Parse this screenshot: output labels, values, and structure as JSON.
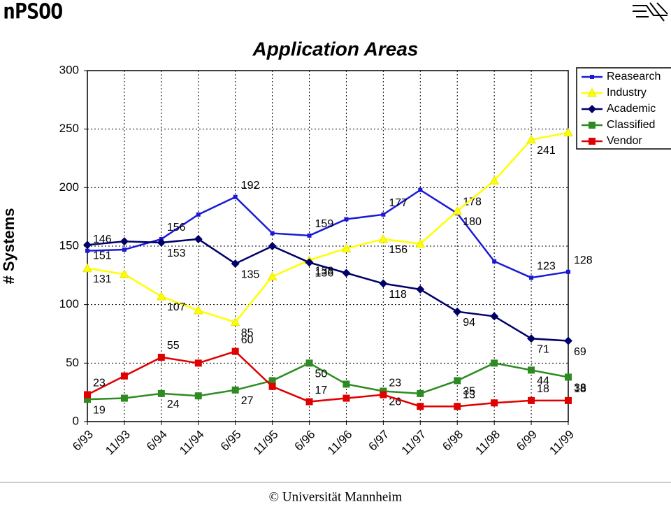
{
  "header": {
    "logo": "nPSOO"
  },
  "chart_data": {
    "type": "line",
    "title": "Application Areas",
    "y_label": "# Systems",
    "categories": [
      "6/93",
      "11/93",
      "6/94",
      "11/94",
      "6/95",
      "11/95",
      "6/96",
      "11/96",
      "6/97",
      "11/97",
      "6/98",
      "11/98",
      "6/99",
      "11/99"
    ],
    "ylim": [
      0,
      300
    ],
    "yticks": [
      0,
      50,
      100,
      150,
      200,
      250,
      300
    ],
    "grid": true,
    "legend": "upper right",
    "series": [
      {
        "name": "Reasearch",
        "color": "#1a1ad6",
        "marker": "square",
        "values": [
          146,
          147,
          156,
          177,
          192,
          161,
          159,
          173,
          177,
          198,
          178,
          137,
          123,
          128
        ],
        "value_labels": [
          146,
          null,
          156,
          null,
          192,
          null,
          159,
          null,
          177,
          null,
          178,
          null,
          123,
          128
        ]
      },
      {
        "name": "Industry",
        "color": "#ffff00",
        "marker": "triangle",
        "values": [
          131,
          126,
          107,
          95,
          85,
          124,
          138,
          148,
          156,
          152,
          180,
          206,
          241,
          247
        ],
        "value_labels": [
          131,
          null,
          107,
          null,
          85,
          null,
          138,
          null,
          156,
          null,
          180,
          null,
          241,
          null
        ]
      },
      {
        "name": "Academic",
        "color": "#000066",
        "marker": "diamond",
        "values": [
          151,
          154,
          153,
          156,
          135,
          150,
          136,
          127,
          118,
          113,
          94,
          90,
          71,
          69
        ],
        "value_labels": [
          151,
          null,
          153,
          null,
          135,
          null,
          136,
          null,
          118,
          null,
          94,
          null,
          71,
          69
        ]
      },
      {
        "name": "Classified",
        "color": "#2e8b22",
        "marker": "square",
        "values": [
          19,
          20,
          24,
          22,
          27,
          35,
          50,
          32,
          26,
          24,
          35,
          50,
          44,
          38
        ],
        "value_labels": [
          19,
          null,
          24,
          null,
          27,
          null,
          50,
          null,
          26,
          null,
          35,
          null,
          44,
          38
        ]
      },
      {
        "name": "Vendor",
        "color": "#e00000",
        "marker": "square",
        "values": [
          23,
          39,
          55,
          50,
          60,
          30,
          17,
          20,
          23,
          13,
          13,
          16,
          18,
          18
        ],
        "value_labels": [
          23,
          null,
          55,
          null,
          60,
          null,
          17,
          null,
          23,
          null,
          13,
          null,
          18,
          18
        ]
      }
    ]
  },
  "footer": {
    "text": "© Universität Mannheim"
  }
}
